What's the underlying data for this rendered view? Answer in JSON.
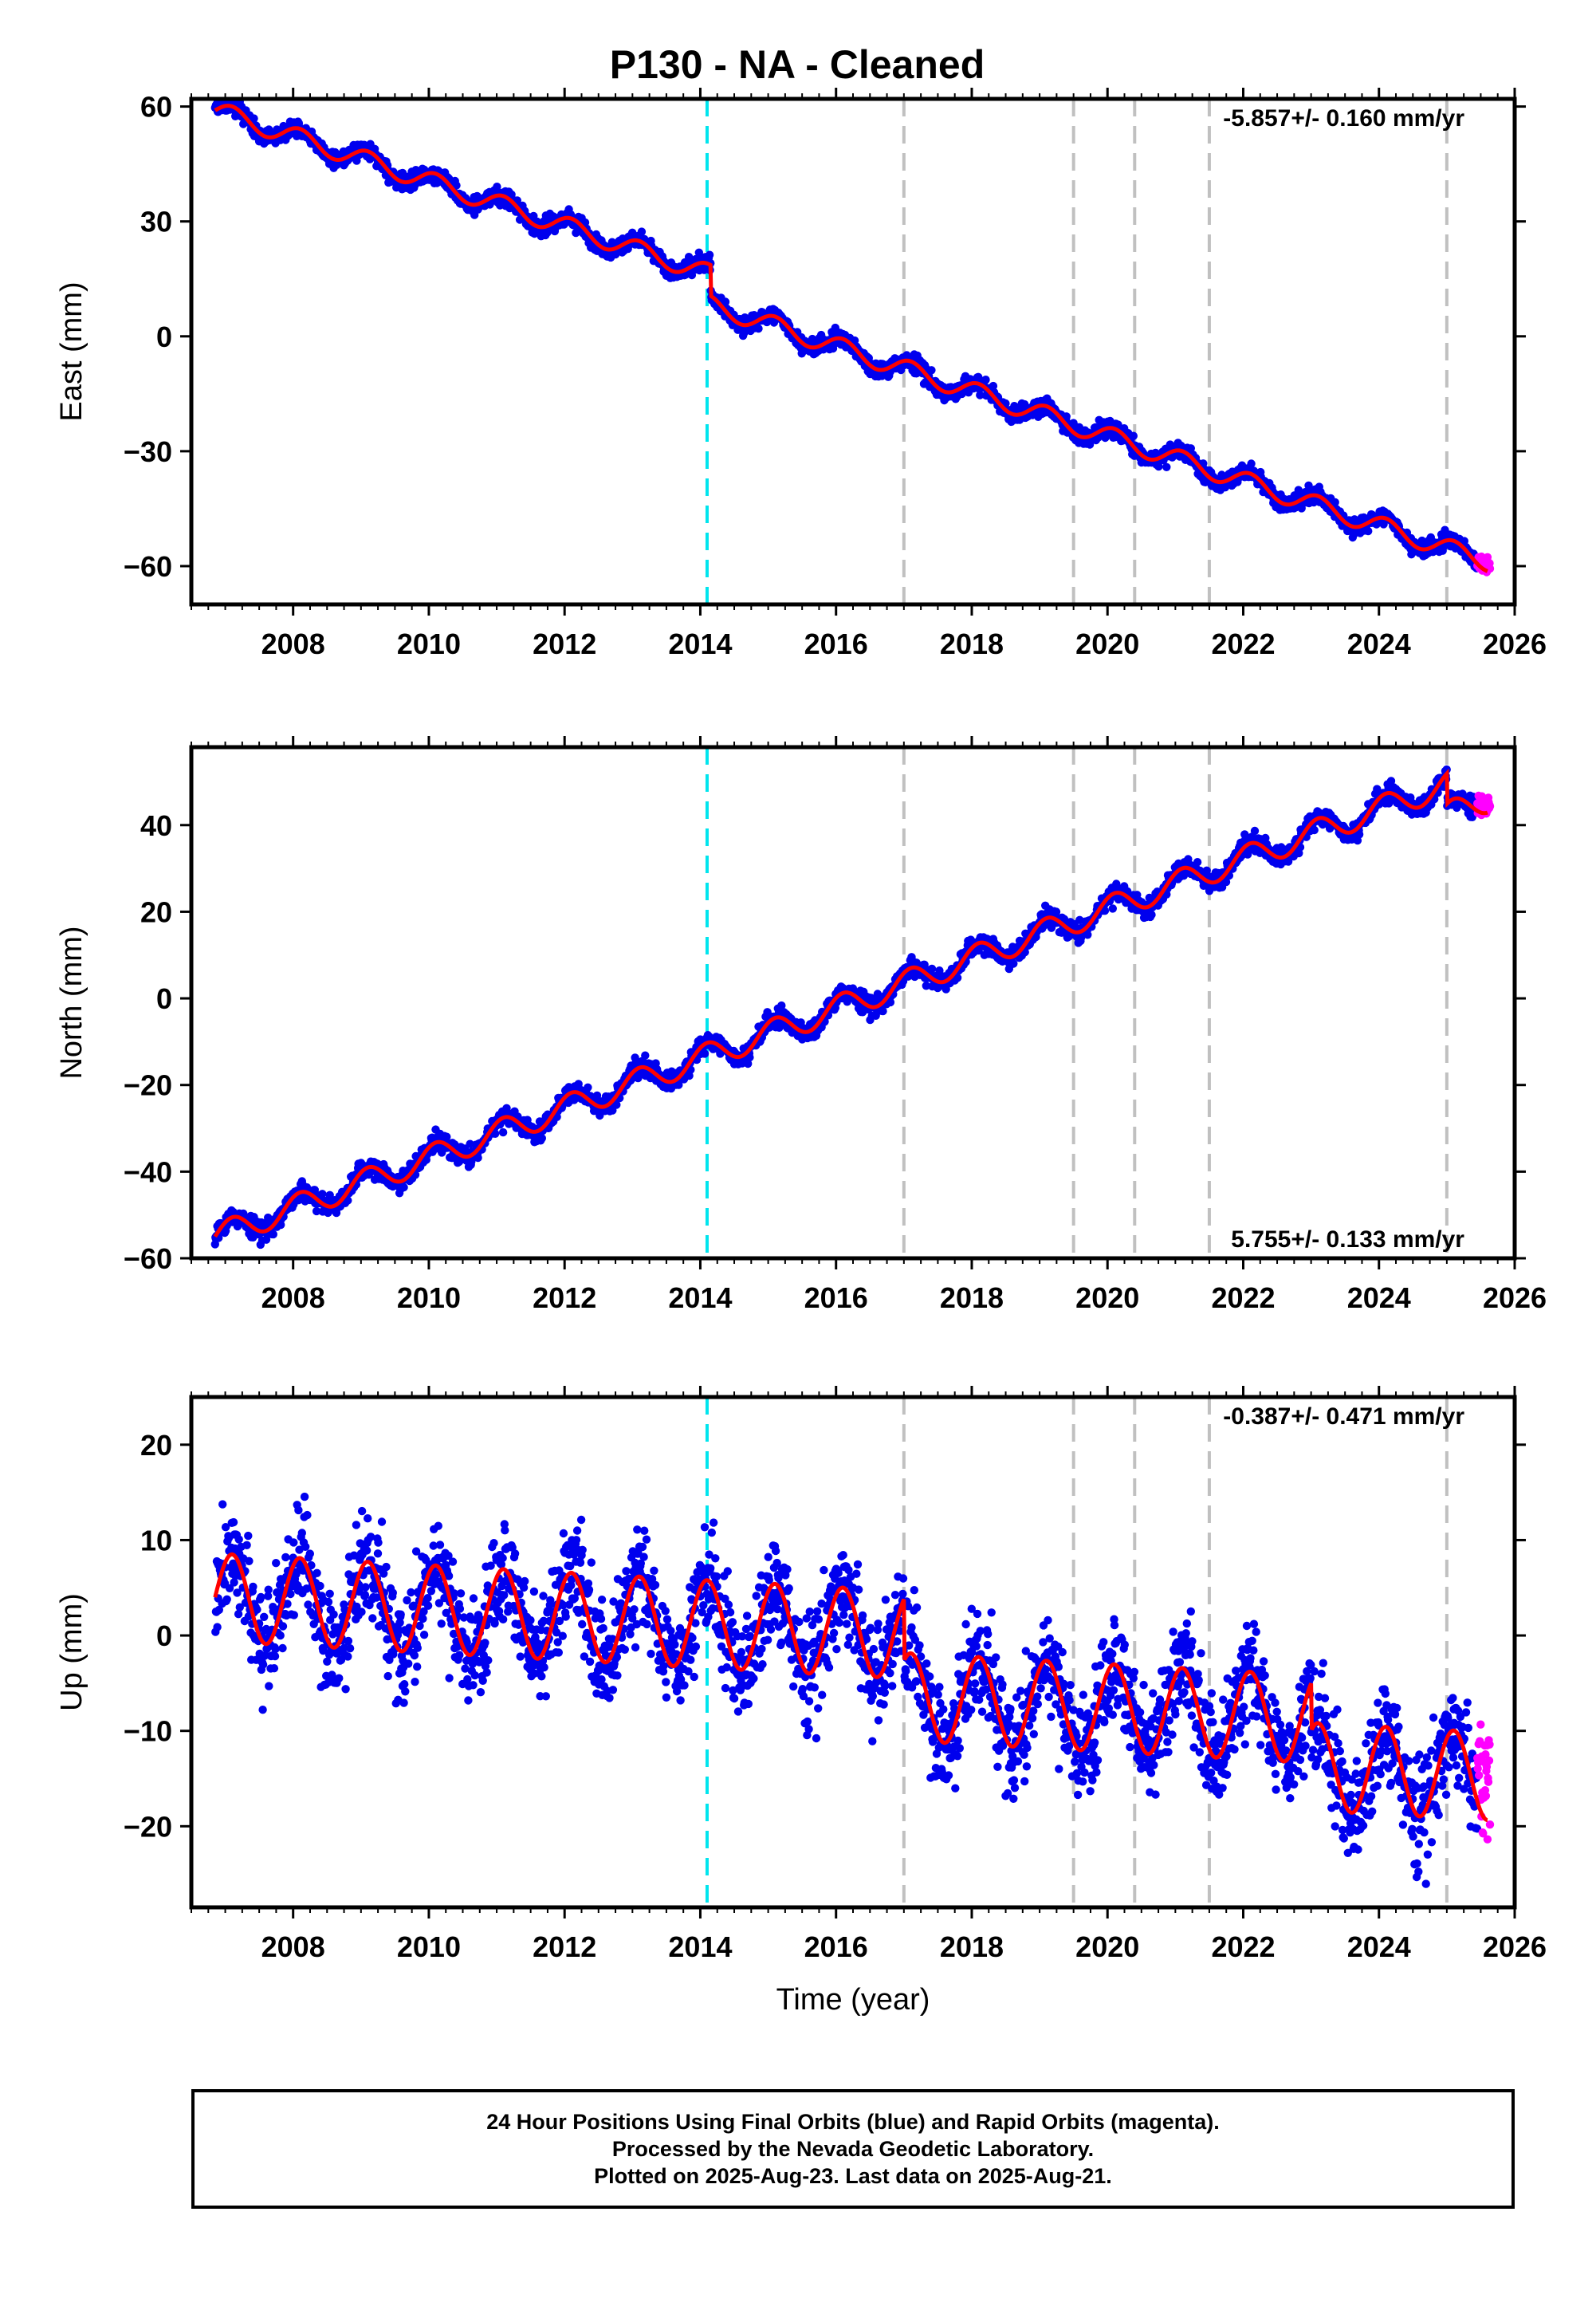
{
  "title": "P130  - NA - Cleaned",
  "caption": {
    "line1": "24 Hour Positions Using Final Orbits (blue) and Rapid Orbits (magenta).",
    "line2": "Processed by the Nevada Geodetic Laboratory.",
    "line3": "Plotted on 2025-Aug-23. Last data on 2025-Aug-21."
  },
  "colors": {
    "final_orbits": "#0000ee",
    "rapid_orbits": "#ff00ff",
    "model_fit": "#ff0000",
    "antenna_change_line": "#00e5ee",
    "equipment_change_line": "#c0c0c0"
  },
  "chart_data": [
    {
      "type": "scatter",
      "name": "east",
      "ylabel": "East (mm)",
      "xlabel": "",
      "xlim": [
        2006.5,
        2026.0
      ],
      "ylim": [
        -70,
        62
      ],
      "xticks": [
        "2008",
        "2010",
        "2012",
        "2014",
        "2016",
        "2018",
        "2020",
        "2022",
        "2024",
        "2026"
      ],
      "yticks": [
        "60",
        "30",
        "0",
        "-30",
        "-60"
      ],
      "rate_label": "-5.857+/- 0.160 mm/yr",
      "rate_label_position": "top-right",
      "cyan_dashed_lines": [
        2014.1
      ],
      "gray_dashed_lines": [
        2017.0,
        2019.5,
        2020.4,
        2021.5,
        2025.0
      ],
      "model": {
        "start": 2006.85,
        "end": 2025.6,
        "value_at_start": 59.0,
        "rate": -5.857,
        "annual_amplitude": 2.5,
        "offsets": [
          {
            "epoch": 2014.15,
            "step": -8
          }
        ]
      },
      "final_orbits_span": [
        2006.85,
        2025.45
      ],
      "rapid_orbits_span": [
        2025.45,
        2025.64
      ],
      "scatter_sd": 1.5
    },
    {
      "type": "scatter",
      "name": "north",
      "ylabel": "North (mm)",
      "xlabel": "",
      "xlim": [
        2006.5,
        2026.0
      ],
      "ylim": [
        -60,
        58
      ],
      "xticks": [
        "2008",
        "2010",
        "2012",
        "2014",
        "2016",
        "2018",
        "2020",
        "2022",
        "2024",
        "2026"
      ],
      "yticks": [
        "40",
        "20",
        "0",
        "-20",
        "-40",
        "-60"
      ],
      "rate_label": "5.755+/- 0.133 mm/yr",
      "rate_label_position": "bottom-right",
      "cyan_dashed_lines": [
        2014.1
      ],
      "gray_dashed_lines": [
        2017.0,
        2019.5,
        2020.4,
        2021.5,
        2025.0
      ],
      "model": {
        "start": 2006.85,
        "end": 2025.6,
        "value_at_start": -55.0,
        "rate": 5.755,
        "annual_amplitude": 3.0,
        "offsets": [
          {
            "epoch": 2025.0,
            "step": -7
          }
        ]
      },
      "final_orbits_span": [
        2006.85,
        2025.45
      ],
      "rapid_orbits_span": [
        2025.45,
        2025.64
      ],
      "scatter_sd": 1.5
    },
    {
      "type": "scatter",
      "name": "up",
      "ylabel": "Up (mm)",
      "xlabel": "Time (year)",
      "xlim": [
        2006.5,
        2026.0
      ],
      "ylim": [
        -28.5,
        25
      ],
      "xticks": [
        "2008",
        "2010",
        "2012",
        "2014",
        "2016",
        "2018",
        "2020",
        "2022",
        "2024",
        "2026"
      ],
      "yticks": [
        "20",
        "10",
        "0",
        "-10",
        "-20"
      ],
      "rate_label": "-0.387+/- 0.471 mm/yr",
      "rate_label_position": "top-right",
      "cyan_dashed_lines": [
        2014.1
      ],
      "gray_dashed_lines": [
        2017.0,
        2019.5,
        2020.4,
        2021.5,
        2025.0
      ],
      "model": {
        "start": 2006.85,
        "end": 2025.6,
        "value_at_start": 4.0,
        "rate": -0.387,
        "annual_amplitude": 4.6,
        "offsets": [
          {
            "epoch": 2017.0,
            "step": -6.5
          },
          {
            "epoch": 2023.0,
            "step": -5
          }
        ]
      },
      "final_orbits_span": [
        2006.85,
        2025.45
      ],
      "rapid_orbits_span": [
        2025.45,
        2025.64
      ],
      "scatter_sd": 3.8
    }
  ]
}
